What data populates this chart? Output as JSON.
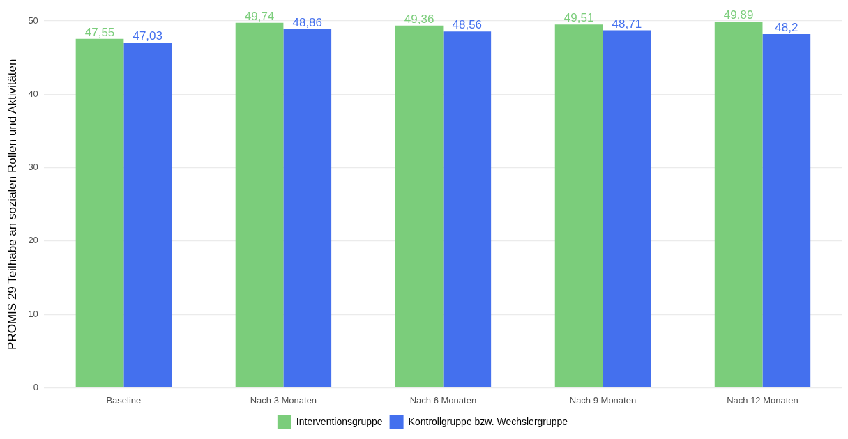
{
  "chart_data": {
    "type": "bar",
    "ylabel": "PROMIS 29 Teilhabe an sozialen Rollen und Aktivitäten",
    "categories": [
      "Baseline",
      "Nach 3 Monaten",
      "Nach 6 Monaten",
      "Nach 9 Monaten",
      "Nach 12 Monaten"
    ],
    "series": [
      {
        "name": "Interventionsgruppe",
        "color": "#7bcd7b",
        "values": [
          47.55,
          49.74,
          49.36,
          49.51,
          49.89
        ],
        "value_labels": [
          "47,55",
          "49,74",
          "49,36",
          "49,51",
          "49,89"
        ]
      },
      {
        "name": "Kontrollgruppe bzw. Wechslergruppe",
        "color": "#4470ee",
        "values": [
          47.03,
          48.86,
          48.56,
          48.71,
          48.2
        ],
        "value_labels": [
          "47,03",
          "48,86",
          "48,56",
          "48,71",
          "48,2"
        ]
      }
    ],
    "ylim": [
      0,
      50
    ],
    "yticks": [
      0,
      10,
      20,
      30,
      40,
      50
    ],
    "grid": "y",
    "legend": "bottom"
  }
}
